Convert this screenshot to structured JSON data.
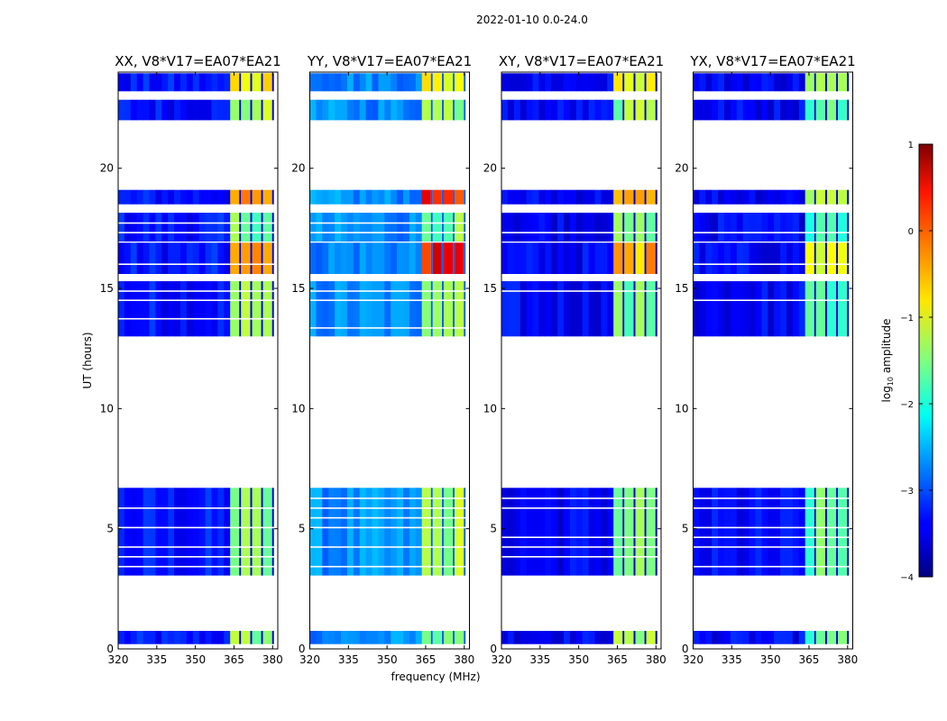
{
  "chart_data": {
    "type": "heatmap",
    "title": "2022-01-10 0.0-24.0",
    "xlabel": "frequency (MHz)",
    "ylabel": "UT (hours)",
    "xlim": [
      320,
      382
    ],
    "ylim": [
      0,
      24
    ],
    "x_ticks": [
      320,
      335,
      350,
      365,
      380
    ],
    "y_ticks": [
      0,
      5,
      10,
      15,
      20
    ],
    "colorbar": {
      "label": "log₁₀ amplitude",
      "label_base": "log",
      "label_sub": "10",
      "label_rest": " amplitude",
      "range": [
        -4,
        1
      ],
      "ticks": [
        1,
        0,
        -1,
        -2,
        -3,
        -4
      ],
      "colormap": "jet"
    },
    "data_time_blocks_hours": [
      [
        0.2,
        0.75
      ],
      [
        3.05,
        6.7
      ],
      [
        13.0,
        15.3
      ],
      [
        15.6,
        16.9
      ],
      [
        16.95,
        18.15
      ],
      [
        18.5,
        19.1
      ],
      [
        22.0,
        22.85
      ],
      [
        23.2,
        23.95
      ]
    ],
    "high_amplitude_band_MHz": [
      363.5,
      380.5
    ],
    "panels": [
      {
        "name": "XX, V8*V17=EA07*EA21",
        "background_log_amplitude": -3.3,
        "band_log_amplitude": -1.5,
        "block_levels": [
          -1.4,
          -1.5,
          -1.4,
          -0.5,
          -1.5,
          -0.5,
          -1.3,
          -0.8
        ]
      },
      {
        "name": "YY, V8*V17=EA07*EA21",
        "background_log_amplitude": -2.7,
        "band_log_amplitude": -1.3,
        "block_levels": [
          -1.4,
          -1.3,
          -1.2,
          0.3,
          -1.5,
          0.2,
          -1.3,
          -0.9
        ]
      },
      {
        "name": "XY, V8*V17=EA07*EA21",
        "background_log_amplitude": -3.4,
        "band_log_amplitude": -1.6,
        "block_levels": [
          -1.4,
          -1.5,
          -1.6,
          -0.5,
          -1.6,
          -0.6,
          -1.4,
          -0.9
        ]
      },
      {
        "name": "YX, V8*V17=EA07*EA21",
        "background_log_amplitude": -3.4,
        "band_log_amplitude": -1.7,
        "block_levels": [
          -1.7,
          -1.7,
          -1.8,
          -1.0,
          -1.7,
          -1.2,
          -1.6,
          -1.4
        ]
      }
    ]
  }
}
